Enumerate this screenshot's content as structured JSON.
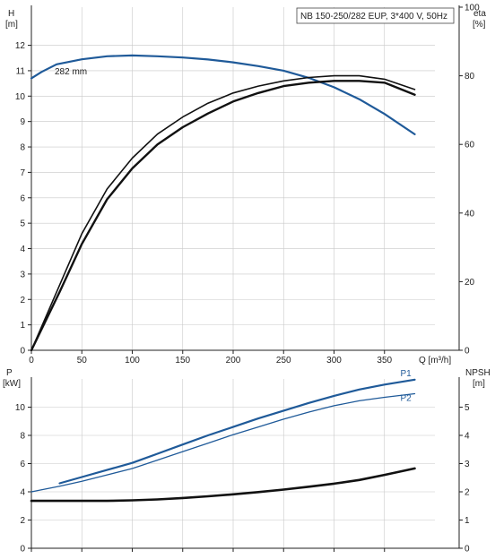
{
  "chart_data": [
    {
      "type": "line",
      "subtitle": "NB 150-250/282 EUP, 3*400 V, 50Hz",
      "annotation": "282 mm",
      "xlabel": "Q [m³/h]",
      "ylabel": "H",
      "ylabel_unit": "[m]",
      "y2label": "eta",
      "y2label_unit": "[%]",
      "xlim": [
        0,
        400
      ],
      "ylim": [
        0,
        13.5
      ],
      "y2lim": [
        0,
        100
      ],
      "x_ticks": [
        "0",
        "50",
        "100",
        "150",
        "200",
        "250",
        "300",
        "350"
      ],
      "y_ticks": [
        "0",
        "1",
        "2",
        "3",
        "4",
        "5",
        "6",
        "7",
        "8",
        "9",
        "10",
        "11",
        "12"
      ],
      "y2_ticks": [
        "0",
        "20",
        "40",
        "60",
        "80",
        "100"
      ],
      "grid": true,
      "series": [
        {
          "name": "H",
          "axis": "left",
          "color": "#1f5a99",
          "x": [
            0,
            10,
            25,
            50,
            75,
            100,
            125,
            150,
            175,
            200,
            225,
            250,
            275,
            300,
            325,
            350,
            380
          ],
          "values": [
            10.7,
            10.95,
            11.25,
            11.45,
            11.57,
            11.6,
            11.57,
            11.52,
            11.44,
            11.33,
            11.18,
            11.0,
            10.72,
            10.35,
            9.88,
            9.3,
            8.5
          ]
        },
        {
          "name": "eta",
          "axis": "right",
          "color": "#111111",
          "x": [
            0,
            28,
            50,
            75,
            100,
            125,
            150,
            175,
            200,
            225,
            250,
            275,
            300,
            325,
            350,
            380
          ],
          "values": [
            0,
            17,
            31,
            44,
            53,
            60,
            65,
            69,
            72.5,
            75,
            77,
            78,
            78.5,
            78.5,
            78,
            74.5
          ]
        },
        {
          "name": "eta",
          "axis": "right",
          "color": "#111111",
          "x": [
            0,
            28,
            50,
            75,
            100,
            125,
            150,
            175,
            200,
            225,
            250,
            275,
            300,
            325,
            350,
            380
          ],
          "values": [
            0,
            19,
            34,
            47,
            56,
            63,
            68,
            72,
            75,
            77,
            78.5,
            79.5,
            80,
            80,
            79,
            76
          ]
        }
      ]
    },
    {
      "type": "line",
      "xlabel": "",
      "ylabel": "P",
      "ylabel_unit": "[kW]",
      "y2label": "NPSH",
      "y2label_unit": "[m]",
      "xlim": [
        0,
        400
      ],
      "ylim": [
        0,
        12
      ],
      "y2lim": [
        0,
        6
      ],
      "y_ticks": [
        "0",
        "2",
        "4",
        "6",
        "8",
        "10"
      ],
      "y2_ticks": [
        "0",
        "1",
        "2",
        "3",
        "4",
        "5"
      ],
      "grid": true,
      "series": [
        {
          "name": "P1",
          "axis": "left",
          "color": "#1f5a99",
          "x": [
            28,
            50,
            75,
            100,
            125,
            150,
            175,
            200,
            225,
            250,
            275,
            300,
            325,
            350,
            380
          ],
          "values": [
            4.6,
            5.05,
            5.55,
            6.05,
            6.7,
            7.35,
            8.0,
            8.6,
            9.2,
            9.75,
            10.3,
            10.8,
            11.25,
            11.6,
            11.95
          ]
        },
        {
          "name": "P2",
          "axis": "left",
          "color": "#1f5a99",
          "x": [
            0,
            28,
            50,
            75,
            100,
            125,
            150,
            175,
            200,
            225,
            250,
            275,
            300,
            325,
            350,
            380
          ],
          "values": [
            4.0,
            4.4,
            4.75,
            5.2,
            5.65,
            6.25,
            6.85,
            7.45,
            8.05,
            8.6,
            9.15,
            9.65,
            10.1,
            10.45,
            10.7,
            10.95
          ]
        },
        {
          "name": "NPSH",
          "axis": "right",
          "color": "#111111",
          "x": [
            0,
            28,
            50,
            75,
            100,
            125,
            150,
            175,
            200,
            225,
            250,
            275,
            300,
            325,
            350,
            380
          ],
          "values": [
            1.68,
            1.68,
            1.68,
            1.68,
            1.7,
            1.73,
            1.78,
            1.84,
            1.91,
            1.99,
            2.08,
            2.18,
            2.29,
            2.42,
            2.6,
            2.83
          ]
        }
      ]
    }
  ]
}
